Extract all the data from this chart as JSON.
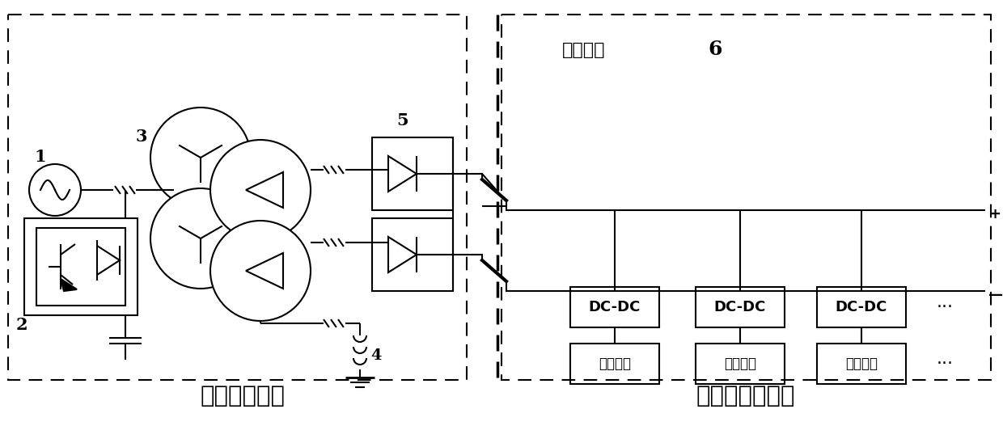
{
  "title_left": "直流供电系统",
  "title_right": "充电站充电系统",
  "label_1": "1",
  "label_2": "2",
  "label_3": "3",
  "label_4": "4",
  "label_5": "5",
  "label_6": "6",
  "dc_bus_label": "直流母线",
  "dc_dc_labels": [
    "DC-DC",
    "DC-DC",
    "DC-DC"
  ],
  "bottom_labels": [
    "储能电池",
    "动力电池",
    "电动公交"
  ],
  "plus_sign": "+",
  "minus_sign": "—",
  "ellipsis": "···",
  "bg_color": "#ffffff",
  "line_color": "#000000"
}
